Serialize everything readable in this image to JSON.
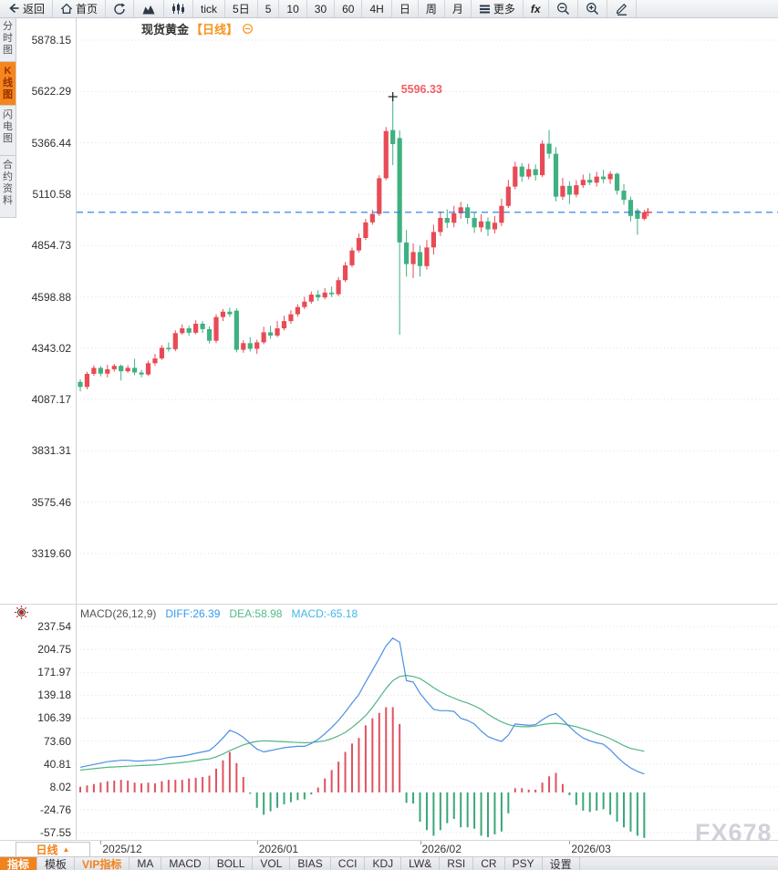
{
  "toolbar": {
    "items": [
      {
        "name": "back",
        "icon": "back-arrow-icon",
        "label": "返回"
      },
      {
        "name": "home",
        "icon": "home-icon",
        "label": "首页"
      },
      {
        "name": "refresh",
        "icon": "refresh-icon",
        "label": ""
      },
      {
        "name": "line-chart-type",
        "icon": "area-chart-icon",
        "label": ""
      },
      {
        "name": "candle-chart-type",
        "icon": "candlestick-icon",
        "label": ""
      },
      {
        "name": "interval-tick",
        "label": "tick"
      },
      {
        "name": "interval-5day",
        "label": "5日"
      },
      {
        "name": "interval-5min",
        "label": "5"
      },
      {
        "name": "interval-10min",
        "label": "10"
      },
      {
        "name": "interval-30min",
        "label": "30"
      },
      {
        "name": "interval-60min",
        "label": "60"
      },
      {
        "name": "interval-4hour",
        "label": "4H"
      },
      {
        "name": "interval-day",
        "label": "日"
      },
      {
        "name": "interval-week",
        "label": "周"
      },
      {
        "name": "interval-month",
        "label": "月"
      },
      {
        "name": "more-menu",
        "icon": "menu-icon",
        "label": "更多"
      },
      {
        "name": "fx",
        "label": "fx"
      },
      {
        "name": "zoom-out",
        "icon": "zoom-out-icon",
        "label": ""
      },
      {
        "name": "zoom-in",
        "icon": "zoom-in-icon",
        "label": ""
      },
      {
        "name": "draw",
        "icon": "pencil-icon",
        "label": ""
      }
    ]
  },
  "title": {
    "symbol": "现货黄金",
    "period": "【日线】",
    "icon": "circle-minus-icon"
  },
  "sidebar": {
    "tabs": [
      {
        "name": "timeshare-chart",
        "label": "分时图",
        "active": false
      },
      {
        "name": "kline-chart",
        "label": "K线图",
        "active": true
      },
      {
        "name": "lightning-chart",
        "label": "闪电图",
        "active": false
      },
      {
        "name": "contract-info",
        "label": "合约资料",
        "active": false
      }
    ]
  },
  "price_pane": {
    "yticks": [
      "5878.15",
      "5622.29",
      "5366.44",
      "5110.58",
      "4854.73",
      "4598.88",
      "4343.02",
      "4087.17",
      "3831.31",
      "3575.46",
      "3319.60"
    ],
    "peak_label": "5596.33"
  },
  "macd_pane": {
    "header": {
      "name": "MACD(26,12,9)",
      "diff_label": "DIFF:26.39",
      "dea_label": "DEA:58.98",
      "macd_label": "MACD:-65.18",
      "settings_icon": "sun-icon"
    },
    "yticks": [
      "237.54",
      "204.75",
      "171.97",
      "139.18",
      "106.39",
      "73.60",
      "40.81",
      "8.02",
      "-24.76",
      "-57.55"
    ]
  },
  "xaxis": {
    "period_button": {
      "label": "日线",
      "arrow": "▲"
    },
    "ticks": [
      {
        "index": 3,
        "label": "2025/12"
      },
      {
        "index": 26,
        "label": "2026/01"
      },
      {
        "index": 50,
        "label": "2026/02"
      },
      {
        "index": 72,
        "label": "2026/03"
      }
    ]
  },
  "bottom_bar": {
    "tabs": [
      {
        "name": "indicator",
        "label": "指标",
        "active": true
      },
      {
        "name": "template",
        "label": "模板"
      },
      {
        "name": "vip-indicator",
        "label": "VIP指标",
        "vip": true
      },
      {
        "name": "ma",
        "label": "MA"
      },
      {
        "name": "macd",
        "label": "MACD"
      },
      {
        "name": "boll",
        "label": "BOLL"
      },
      {
        "name": "vol",
        "label": "VOL"
      },
      {
        "name": "bias",
        "label": "BIAS"
      },
      {
        "name": "cci",
        "label": "CCI"
      },
      {
        "name": "kdj",
        "label": "KDJ"
      },
      {
        "name": "lw",
        "label": "LW&"
      },
      {
        "name": "rsi",
        "label": "RSI"
      },
      {
        "name": "cr",
        "label": "CR"
      },
      {
        "name": "psy",
        "label": "PSY"
      },
      {
        "name": "settings",
        "label": "设置"
      }
    ]
  },
  "watermark": "FX678",
  "colors": {
    "up": "#e84b55",
    "down": "#3fb181",
    "hist_up": "#e05260",
    "hist_down": "#3aa778",
    "diff_line": "#4a90e2",
    "dea_line": "#52b584",
    "price_line": "#1e79e8",
    "grid": "#dfe1e5",
    "accent_orange": "#f0831d",
    "peak_text": "#f25f66",
    "cross": "#1a1a1a"
  },
  "chart_data": {
    "type": "candlestick+macd",
    "title": "现货黄金 日线",
    "x_labels": [
      "2025/12",
      "2026/01",
      "2026/02",
      "2026/03"
    ],
    "x_tick_indices": [
      3,
      26,
      50,
      72
    ],
    "price_axis": {
      "ticks": [
        5878.15,
        5622.29,
        5366.44,
        5110.58,
        4854.73,
        4598.88,
        4343.02,
        4087.17,
        3831.31,
        3575.46,
        3319.6
      ]
    },
    "macd_axis": {
      "ticks": [
        237.54,
        204.75,
        171.97,
        139.18,
        106.39,
        73.6,
        40.81,
        8.02,
        -24.76,
        -57.55
      ]
    },
    "last_price": 5020,
    "peak_price": 5596.33,
    "macd": {
      "hist_formula": "2*(DIFF-DEA)",
      "diff": [
        36,
        38,
        40,
        42,
        44,
        45,
        46,
        46,
        45,
        45,
        46,
        46,
        48,
        50,
        51,
        52,
        54,
        56,
        58,
        60,
        68,
        78,
        89,
        85,
        79,
        70,
        62,
        58,
        60,
        62,
        64,
        65,
        66,
        66,
        70,
        76,
        84,
        93,
        103,
        115,
        128,
        140,
        158,
        175,
        192,
        210,
        221,
        215,
        160,
        158,
        142,
        130,
        119,
        117,
        117,
        116,
        106,
        103,
        98,
        88,
        80,
        76,
        73,
        82,
        98,
        97,
        96,
        97,
        104,
        110,
        113,
        104,
        94,
        85,
        78,
        74,
        71,
        69,
        61,
        51,
        42,
        35,
        30,
        26.39
      ],
      "dea": [
        32,
        33,
        34,
        35,
        36,
        36.5,
        37,
        37.5,
        38,
        38.5,
        39,
        39.5,
        40,
        41,
        42,
        43,
        44,
        45.5,
        47,
        48,
        51,
        55,
        60,
        64,
        68,
        71,
        73,
        74,
        73.5,
        73,
        72.5,
        72,
        71.5,
        71,
        71.5,
        72.5,
        74,
        77,
        81,
        86,
        93,
        101,
        110,
        122,
        135,
        149,
        160,
        166,
        167.5,
        166,
        163,
        157,
        150,
        144,
        139,
        135,
        131,
        128,
        124,
        119,
        112,
        106,
        101,
        97,
        95,
        94,
        94,
        95,
        97,
        98.5,
        99,
        98,
        96,
        94,
        91,
        88,
        84,
        81,
        77,
        72,
        67,
        63,
        61,
        58.98
      ]
    },
    "candles_ohlc": [
      [
        4175,
        4188,
        4128,
        4150
      ],
      [
        4150,
        4225,
        4138,
        4215
      ],
      [
        4215,
        4258,
        4205,
        4245
      ],
      [
        4245,
        4254,
        4202,
        4216
      ],
      [
        4216,
        4260,
        4198,
        4238
      ],
      [
        4238,
        4265,
        4226,
        4255
      ],
      [
        4255,
        4262,
        4182,
        4228
      ],
      [
        4228,
        4258,
        4220,
        4245
      ],
      [
        4245,
        4290,
        4208,
        4222
      ],
      [
        4222,
        4235,
        4198,
        4212
      ],
      [
        4212,
        4280,
        4205,
        4268
      ],
      [
        4268,
        4315,
        4255,
        4292
      ],
      [
        4292,
        4358,
        4285,
        4345
      ],
      [
        4345,
        4372,
        4326,
        4338
      ],
      [
        4338,
        4432,
        4328,
        4418
      ],
      [
        4418,
        4462,
        4410,
        4442
      ],
      [
        4442,
        4455,
        4405,
        4420
      ],
      [
        4420,
        4482,
        4412,
        4465
      ],
      [
        4465,
        4478,
        4418,
        4438
      ],
      [
        4438,
        4452,
        4366,
        4380
      ],
      [
        4380,
        4512,
        4368,
        4498
      ],
      [
        4498,
        4538,
        4478,
        4525
      ],
      [
        4525,
        4545,
        4498,
        4512
      ],
      [
        4530,
        4542,
        4322,
        4335
      ],
      [
        4335,
        4382,
        4320,
        4368
      ],
      [
        4368,
        4398,
        4326,
        4340
      ],
      [
        4340,
        4385,
        4315,
        4372
      ],
      [
        4372,
        4450,
        4362,
        4422
      ],
      [
        4422,
        4455,
        4390,
        4406
      ],
      [
        4406,
        4478,
        4398,
        4442
      ],
      [
        4442,
        4505,
        4432,
        4478
      ],
      [
        4478,
        4532,
        4465,
        4512
      ],
      [
        4512,
        4562,
        4500,
        4548
      ],
      [
        4548,
        4600,
        4538,
        4575
      ],
      [
        4575,
        4625,
        4565,
        4610
      ],
      [
        4610,
        4632,
        4578,
        4596
      ],
      [
        4596,
        4642,
        4586,
        4620
      ],
      [
        4620,
        4650,
        4598,
        4612
      ],
      [
        4612,
        4698,
        4602,
        4682
      ],
      [
        4682,
        4772,
        4672,
        4756
      ],
      [
        4756,
        4845,
        4746,
        4830
      ],
      [
        4830,
        4915,
        4820,
        4892
      ],
      [
        4892,
        4988,
        4882,
        4970
      ],
      [
        4970,
        5032,
        4958,
        5012
      ],
      [
        5012,
        5205,
        5002,
        5190
      ],
      [
        5190,
        5445,
        5180,
        5425
      ],
      [
        5430,
        5596.33,
        5255,
        5360
      ],
      [
        5390,
        5428,
        4410,
        4870
      ],
      [
        4870,
        4932,
        4700,
        4762
      ],
      [
        4762,
        4865,
        4692,
        4822
      ],
      [
        4822,
        4855,
        4700,
        4752
      ],
      [
        4752,
        4882,
        4735,
        4845
      ],
      [
        4845,
        4958,
        4810,
        4922
      ],
      [
        4922,
        5025,
        4902,
        4992
      ],
      [
        4992,
        5035,
        4942,
        4968
      ],
      [
        4968,
        5052,
        4945,
        5015
      ],
      [
        5015,
        5072,
        4988,
        5045
      ],
      [
        5045,
        5062,
        4962,
        4992
      ],
      [
        4992,
        5022,
        4918,
        4945
      ],
      [
        4945,
        5010,
        4922,
        4975
      ],
      [
        4975,
        4995,
        4902,
        4935
      ],
      [
        4935,
        5002,
        4915,
        4968
      ],
      [
        4968,
        5088,
        4952,
        5052
      ],
      [
        5052,
        5182,
        5042,
        5148
      ],
      [
        5148,
        5272,
        5135,
        5248
      ],
      [
        5248,
        5265,
        5172,
        5198
      ],
      [
        5198,
        5262,
        5185,
        5235
      ],
      [
        5235,
        5258,
        5178,
        5205
      ],
      [
        5205,
        5378,
        5195,
        5362
      ],
      [
        5362,
        5430,
        5288,
        5312
      ],
      [
        5312,
        5345,
        5075,
        5098
      ],
      [
        5098,
        5192,
        5082,
        5152
      ],
      [
        5152,
        5175,
        5062,
        5108
      ],
      [
        5108,
        5180,
        5095,
        5155
      ],
      [
        5155,
        5208,
        5142,
        5182
      ],
      [
        5182,
        5215,
        5155,
        5168
      ],
      [
        5168,
        5222,
        5148,
        5198
      ],
      [
        5198,
        5232,
        5165,
        5185
      ],
      [
        5185,
        5225,
        5162,
        5212
      ],
      [
        5212,
        5218,
        5108,
        5128
      ],
      [
        5128,
        5162,
        5058,
        5082
      ],
      [
        5082,
        5098,
        4975,
        5002
      ],
      [
        5030,
        5040,
        4908,
        4988
      ],
      [
        4988,
        5032,
        4980,
        5020
      ]
    ]
  }
}
